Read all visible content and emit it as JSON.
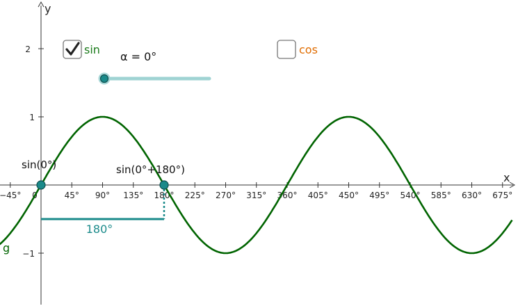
{
  "axes": {
    "x_name": "x",
    "y_name": "y",
    "x_ticks": [
      "−45°",
      "0",
      "45°",
      "90°",
      "135°",
      "180°",
      "225°",
      "270°",
      "315°",
      "360°",
      "405°",
      "450°",
      "495°",
      "540°",
      "585°",
      "630°",
      "675°"
    ],
    "y_ticks": [
      "2",
      "1",
      "−1"
    ]
  },
  "controls": {
    "sin_checkbox": {
      "label": "sin",
      "checked": true,
      "color": "#1a7a1a"
    },
    "cos_checkbox": {
      "label": "cos",
      "checked": false,
      "color": "#e06c00"
    },
    "slider": {
      "label": "α = 0°",
      "value": 0,
      "color": "#5fb8b8"
    }
  },
  "graph": {
    "function_name": "g",
    "curve_color": "#006400",
    "accent_color": "#1a8a8a"
  },
  "points": {
    "p1_label": "sin(0°)",
    "p2_label": "sin(0°+180°)",
    "span_label": "180°"
  },
  "chart_data": {
    "type": "line",
    "xlabel": "x",
    "ylabel": "y",
    "xlim": [
      -65,
      685
    ],
    "ylim": [
      -1.73,
      2.6
    ],
    "grid": false,
    "series": [
      {
        "name": "g",
        "function": "sin(x)",
        "x_unit": "degrees"
      }
    ],
    "points": [
      {
        "label": "sin(0°)",
        "x": 0,
        "y": 0
      },
      {
        "label": "sin(0°+180°)",
        "x": 180,
        "y": 0
      }
    ],
    "annotations": [
      {
        "text": "180°",
        "from_x": 0,
        "to_x": 180,
        "y": -0.5
      }
    ]
  }
}
